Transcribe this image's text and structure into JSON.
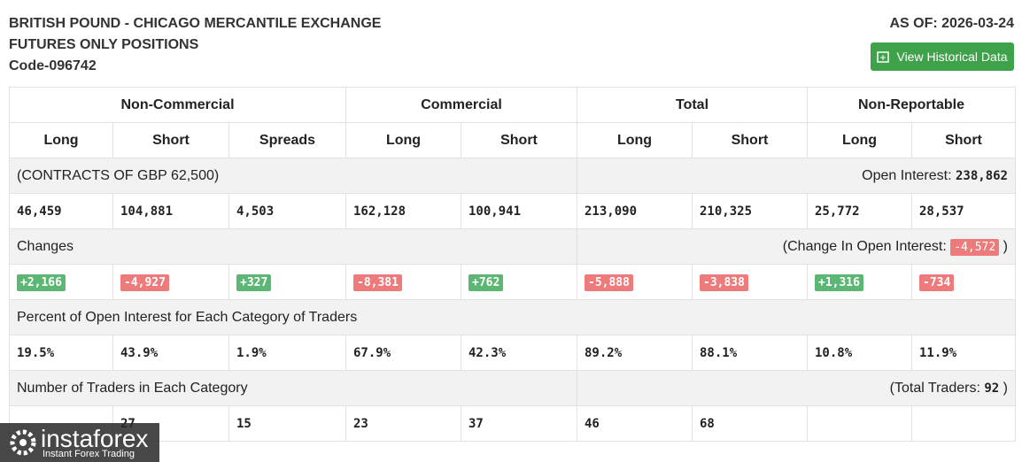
{
  "header": {
    "title_lines": [
      "BRITISH POUND - CHICAGO MERCANTILE EXCHANGE",
      "FUTURES ONLY POSITIONS",
      "Code-096742"
    ],
    "as_of": "AS OF: 2026-03-24",
    "button": "View Historical Data"
  },
  "table": {
    "groups": [
      "Non-Commercial",
      "Commercial",
      "Total",
      "Non-Reportable"
    ],
    "columns": [
      "Long",
      "Short",
      "Spreads",
      "Long",
      "Short",
      "Long",
      "Short",
      "Long",
      "Short"
    ],
    "contracts": {
      "label": "(CONTRACTS OF GBP 62,500)",
      "right_label": "Open Interest:",
      "right_value": "238,862"
    },
    "positions": [
      "46,459",
      "104,881",
      "4,503",
      "162,128",
      "100,941",
      "213,090",
      "210,325",
      "25,772",
      "28,537"
    ],
    "changes": {
      "label": "Changes",
      "right_label": "(Change In Open Interest:",
      "right_value": "-4,572",
      "right_close": ")"
    },
    "change_values": [
      "+2,166",
      "-4,927",
      "+327",
      "-8,381",
      "+762",
      "-5,888",
      "-3,838",
      "+1,316",
      "-734"
    ],
    "percent": {
      "label": "Percent of Open Interest for Each Category of Traders"
    },
    "percent_values": [
      "19.5%",
      "43.9%",
      "1.9%",
      "67.9%",
      "42.3%",
      "89.2%",
      "88.1%",
      "10.8%",
      "11.9%"
    ],
    "traders": {
      "label": "Number of Traders in Each Category",
      "right_label": "(Total Traders:",
      "right_value": "92",
      "right_close": ")"
    },
    "trader_values": [
      null,
      "27",
      "15",
      "23",
      "37",
      "46",
      "68",
      null,
      null
    ]
  },
  "watermark": {
    "brand": "instaforex",
    "tagline": "Instant Forex Trading"
  }
}
